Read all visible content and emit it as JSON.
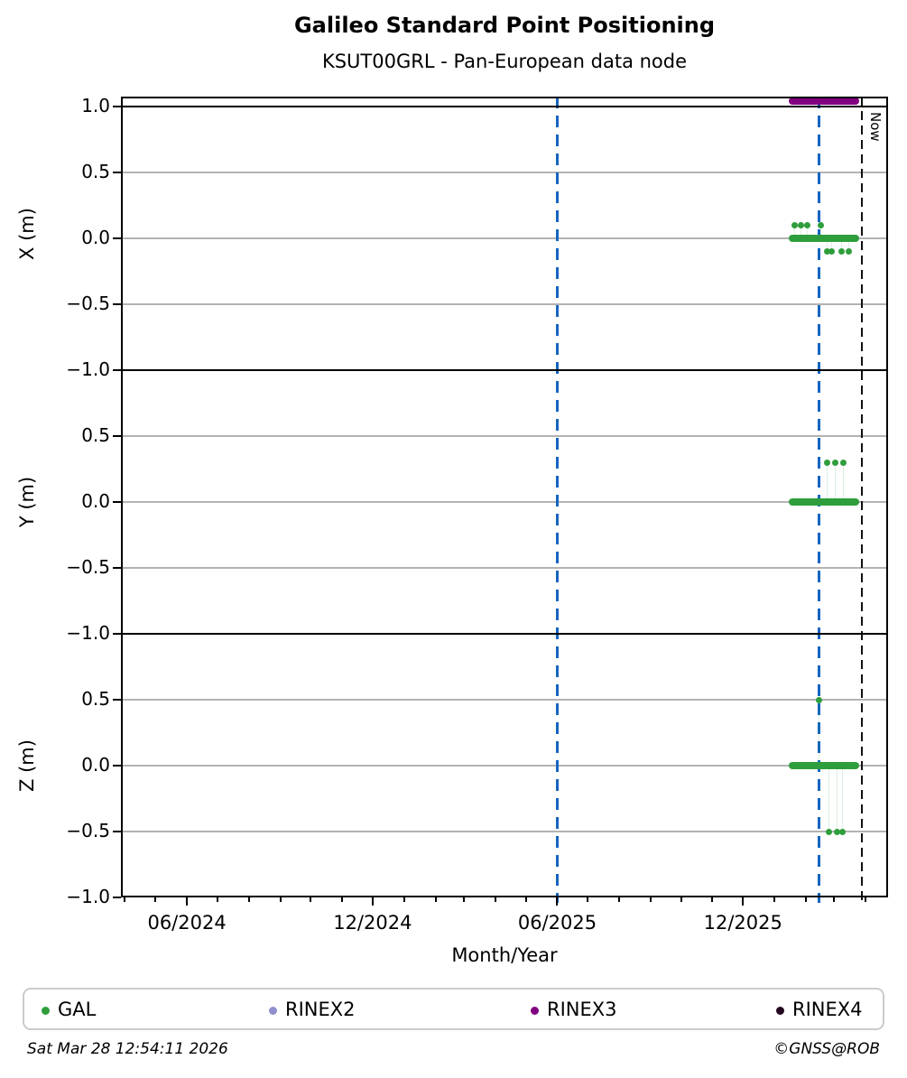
{
  "title": "Galileo Standard Point Positioning",
  "subtitle": "KSUT00GRL - Pan-European data node",
  "xlabel": "Month/Year",
  "now_label": "Now",
  "footer": {
    "timestamp": "Sat Mar 28 12:54:11 2026",
    "copyright": "©GNSS@ROB"
  },
  "colors": {
    "gal_green": "#2e9e3c",
    "gal_stem": "rgba(46,158,60,0.16)",
    "rinex2_lavender": "#9090cf",
    "rinex3_purple": "#800080",
    "rinex4_dark": "#23081f",
    "vline_blue": "#1565c0",
    "vline_now_black": "#111111",
    "gridline_gray": "#b3b3b3",
    "frame_black": "#000000"
  },
  "legend": [
    {
      "label": "GAL",
      "color": "#2e9e3c"
    },
    {
      "label": "RINEX2",
      "color": "#9090cf"
    },
    {
      "label": "RINEX3",
      "color": "#800080"
    },
    {
      "label": "RINEX4",
      "color": "#23081f"
    }
  ],
  "chart_data": {
    "type": "scatter",
    "title": "Galileo Standard Point Positioning",
    "subtitle": "KSUT00GRL - Pan-European data node",
    "xlabel": "Month/Year",
    "x_axis": {
      "start": "2024-03-28",
      "end": "2026-04-23",
      "major_ticks": [
        {
          "date": "2024-06-01",
          "label": "06/2024"
        },
        {
          "date": "2024-12-01",
          "label": "12/2024"
        },
        {
          "date": "2025-06-01",
          "label": "06/2025"
        },
        {
          "date": "2025-12-01",
          "label": "12/2025"
        }
      ],
      "minor_ticks": {
        "interval": "month",
        "start": "2024-04-01",
        "end": "2026-04-01"
      }
    },
    "vlines": [
      {
        "date": "2025-06-01",
        "color": "#1565c0",
        "style": "dashed"
      },
      {
        "date": "2026-02-14",
        "color": "#1565c0",
        "style": "dashed"
      }
    ],
    "now": {
      "date": "2026-03-28",
      "label": "Now"
    },
    "panels": [
      {
        "ylabel": "X (m)",
        "ylim": [
          -1.0,
          1.075
        ],
        "hline_black": 1.0,
        "yticks": [
          {
            "value": 1.0,
            "label": "1.0"
          },
          {
            "value": 0.5,
            "label": "0.5"
          },
          {
            "value": 0.0,
            "label": "0.0"
          },
          {
            "value": -0.5,
            "label": "−0.5"
          },
          {
            "value": -1.0,
            "label": "−1.0"
          }
        ],
        "gridlines": [
          0.5,
          0.0,
          -0.5
        ],
        "series": [
          {
            "name": "RINEX3",
            "type": "availability-bar",
            "color": "#800080",
            "y": 1.04,
            "start": "2026-01-19",
            "end": "2026-03-22"
          },
          {
            "name": "GAL",
            "type": "dense-baseline",
            "color": "#2e9e3c",
            "y": 0.0,
            "start": "2026-01-19",
            "end": "2026-03-22"
          },
          {
            "name": "GAL",
            "type": "points",
            "color": "#2e9e3c",
            "stem_to_y": 0.0,
            "points": [
              {
                "date": "2026-01-21",
                "y": 0.1
              },
              {
                "date": "2026-01-27",
                "y": 0.1
              },
              {
                "date": "2026-02-02",
                "y": 0.1
              },
              {
                "date": "2026-02-16",
                "y": 0.1
              },
              {
                "date": "2026-02-22",
                "y": -0.1
              },
              {
                "date": "2026-02-26",
                "y": -0.1
              },
              {
                "date": "2026-03-08",
                "y": -0.1
              },
              {
                "date": "2026-03-15",
                "y": -0.1
              }
            ]
          }
        ]
      },
      {
        "ylabel": "Y (m)",
        "ylim": [
          -1.0,
          1.0
        ],
        "yticks": [
          {
            "value": 0.5,
            "label": "0.5"
          },
          {
            "value": 0.0,
            "label": "0.0"
          },
          {
            "value": -0.5,
            "label": "−0.5"
          },
          {
            "value": -1.0,
            "label": "−1.0"
          }
        ],
        "gridlines": [
          0.5,
          0.0,
          -0.5
        ],
        "series": [
          {
            "name": "GAL",
            "type": "dense-baseline",
            "color": "#2e9e3c",
            "y": 0.0,
            "start": "2026-01-19",
            "end": "2026-03-22"
          },
          {
            "name": "GAL",
            "type": "points",
            "color": "#2e9e3c",
            "stem_to_y": 0.0,
            "points": [
              {
                "date": "2026-02-22",
                "y": 0.3
              },
              {
                "date": "2026-03-02",
                "y": 0.3
              },
              {
                "date": "2026-03-10",
                "y": 0.3
              }
            ]
          }
        ]
      },
      {
        "ylabel": "Z (m)",
        "ylim": [
          -1.0,
          1.0
        ],
        "yticks": [
          {
            "value": 0.5,
            "label": "0.5"
          },
          {
            "value": 0.0,
            "label": "0.0"
          },
          {
            "value": -0.5,
            "label": "−0.5"
          },
          {
            "value": -1.0,
            "label": "−1.0"
          }
        ],
        "gridlines": [
          0.5,
          0.0,
          -0.5
        ],
        "series": [
          {
            "name": "GAL",
            "type": "dense-baseline",
            "color": "#2e9e3c",
            "y": 0.0,
            "start": "2026-01-19",
            "end": "2026-03-22"
          },
          {
            "name": "GAL",
            "type": "points",
            "color": "#2e9e3c",
            "stem_to_y": 0.0,
            "points": [
              {
                "date": "2026-02-14",
                "y": 0.5
              },
              {
                "date": "2026-02-24",
                "y": -0.5
              },
              {
                "date": "2026-03-04",
                "y": -0.5
              },
              {
                "date": "2026-03-09",
                "y": -0.5
              }
            ]
          }
        ]
      }
    ]
  }
}
